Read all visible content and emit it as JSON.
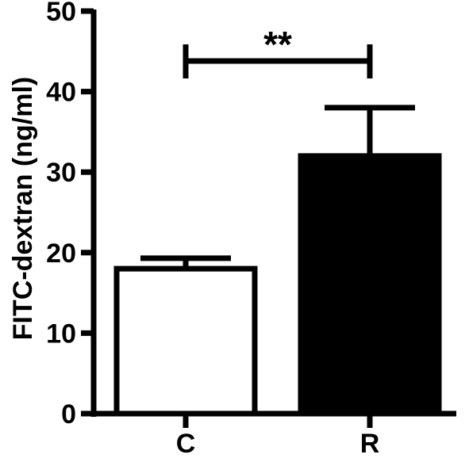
{
  "chart_data": {
    "type": "bar",
    "title": "",
    "xlabel": "",
    "ylabel": "FITC-dextran (ng/ml)",
    "categories": [
      "C",
      "R"
    ],
    "values": [
      18,
      32
    ],
    "errors": [
      1.3,
      6
    ],
    "ylim": [
      0,
      50
    ],
    "yticks": [
      "0",
      "10",
      "20",
      "30",
      "40",
      "50"
    ],
    "bar_fills": [
      "#ffffff",
      "#000000"
    ],
    "significance": {
      "between": [
        "C",
        "R"
      ],
      "label": "**"
    },
    "grid": false,
    "legend": "none"
  }
}
